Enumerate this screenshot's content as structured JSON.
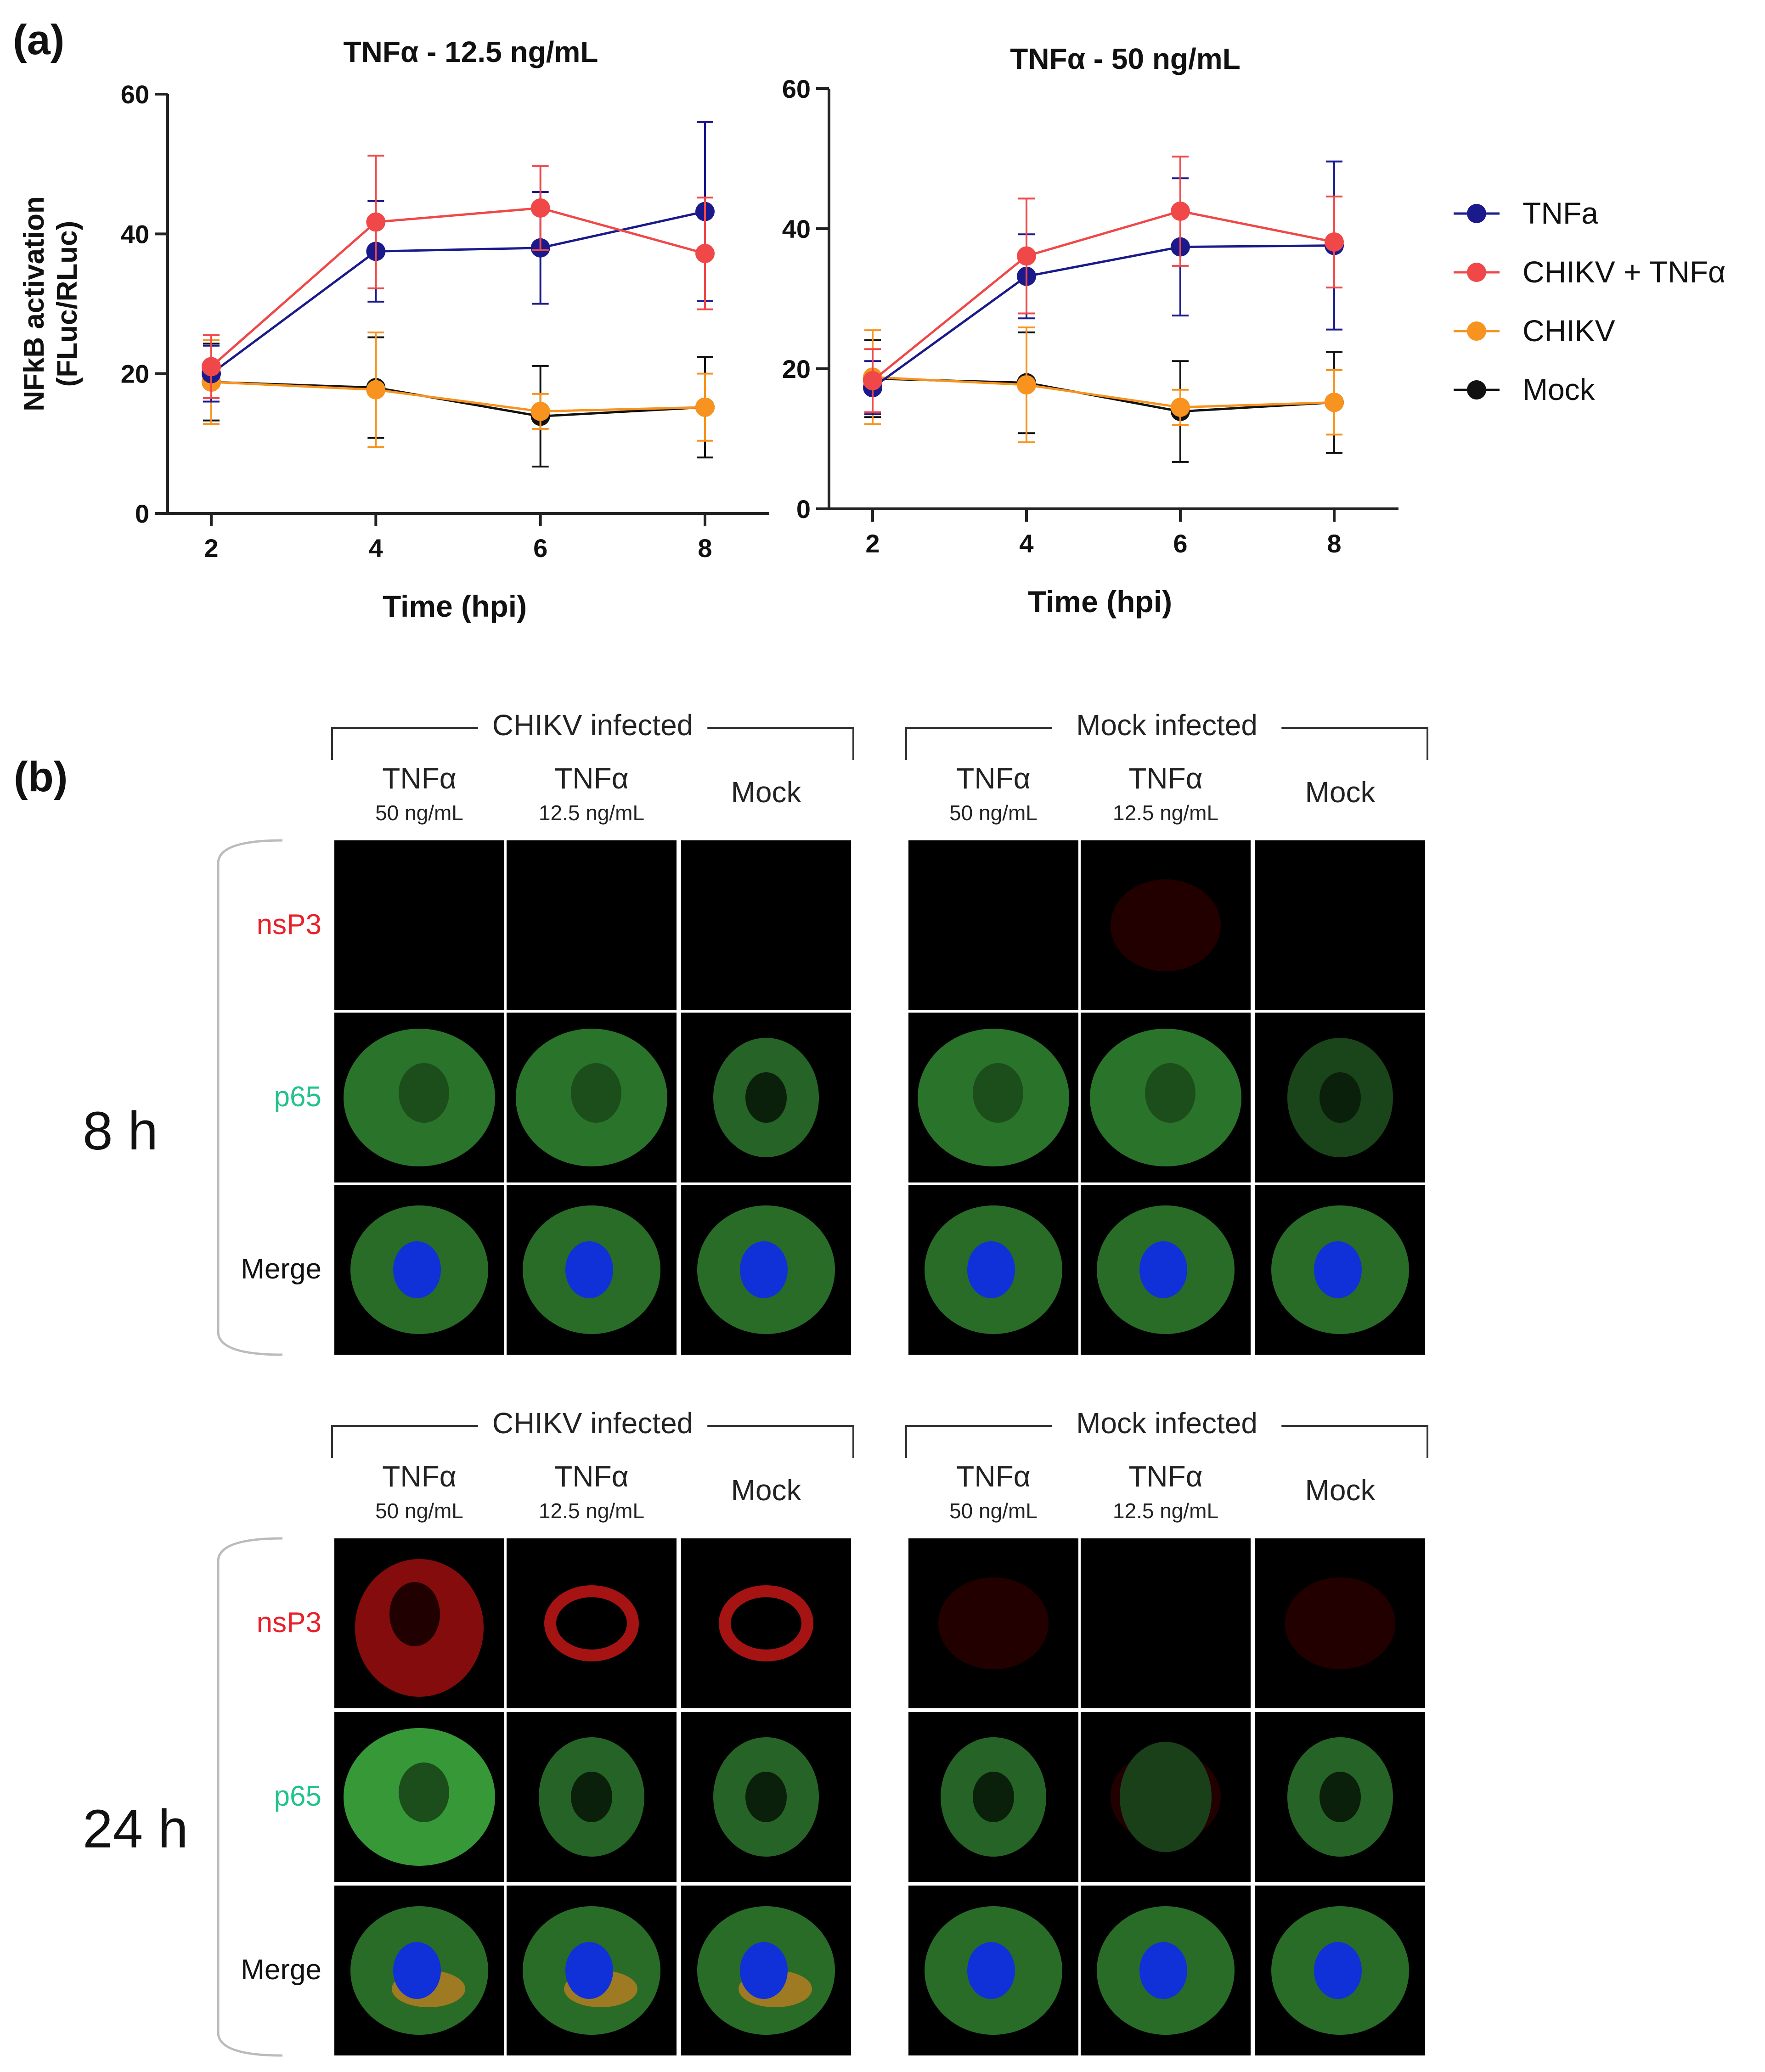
{
  "panel_a_label": "(a)",
  "panel_b_label": "(b)",
  "colors": {
    "tnfa": "#1a1a8c",
    "chikv_tnfa": "#f04848",
    "chikv": "#f7931e",
    "mock": "#111111",
    "nsp3_label": "#e8202a",
    "p65_label": "#22c28c"
  },
  "chart_data": [
    {
      "type": "line",
      "title": "TNFα - 12.5 ng/mL",
      "xlabel": "Time (hpi)",
      "ylabel": "NFkB activation\n(FLuc/RLuc)",
      "x": [
        2,
        4,
        6,
        8
      ],
      "xticks": [
        "2",
        "4",
        "6",
        "8"
      ],
      "yticks": [
        "0",
        "20",
        "40",
        "60"
      ],
      "ylim": [
        0,
        60
      ],
      "series": [
        {
          "name": "TNFa",
          "color": "tnfa",
          "values": [
            20,
            37.5,
            38,
            43.2
          ],
          "errors": [
            4,
            7.2,
            8,
            12.8
          ]
        },
        {
          "name": "CHIKV + TNFα",
          "color": "chikv_tnfa",
          "values": [
            21,
            41.7,
            43.7,
            37.2
          ],
          "errors": [
            4.5,
            9.5,
            6,
            8
          ]
        },
        {
          "name": "CHIKV",
          "color": "chikv",
          "values": [
            18.8,
            17.7,
            14.6,
            15.2
          ],
          "errors": [
            6,
            8.2,
            2.5,
            4.8
          ]
        },
        {
          "name": "Mock",
          "color": "mock",
          "values": [
            18.8,
            18,
            13.9,
            15.2
          ],
          "errors": [
            5.5,
            7.2,
            7.2,
            7.2
          ]
        }
      ]
    },
    {
      "type": "line",
      "title": "TNFα - 50 ng/mL",
      "xlabel": "Time (hpi)",
      "ylabel": "",
      "x": [
        2,
        4,
        6,
        8
      ],
      "xticks": [
        "2",
        "4",
        "6",
        "8"
      ],
      "yticks": [
        "0",
        "20",
        "40",
        "60"
      ],
      "ylim": [
        0,
        60
      ],
      "series": [
        {
          "name": "TNFa",
          "color": "tnfa",
          "values": [
            17.3,
            33.2,
            37.4,
            37.6
          ],
          "errors": [
            3.8,
            6,
            9.8,
            12
          ]
        },
        {
          "name": "CHIKV + TNFα",
          "color": "chikv_tnfa",
          "values": [
            18.3,
            36.1,
            42.5,
            38.1
          ],
          "errors": [
            4.5,
            8.2,
            7.8,
            6.5
          ]
        },
        {
          "name": "CHIKV",
          "color": "chikv",
          "values": [
            18.8,
            17.7,
            14.5,
            15.2
          ],
          "errors": [
            6.7,
            8.2,
            2.5,
            4.6
          ]
        },
        {
          "name": "Mock",
          "color": "mock",
          "values": [
            18.6,
            18,
            13.9,
            15.2
          ],
          "errors": [
            5.5,
            7.2,
            7.2,
            7.2
          ]
        }
      ]
    }
  ],
  "legend": [
    {
      "label": "TNFa",
      "color": "tnfa"
    },
    {
      "label": "CHIKV + TNFα",
      "color": "chikv_tnfa"
    },
    {
      "label": "CHIKV",
      "color": "chikv"
    },
    {
      "label": "Mock",
      "color": "mock"
    }
  ],
  "panel_b": {
    "groups": [
      "CHIKV infected",
      "Mock infected"
    ],
    "treatments": [
      {
        "name": "TNFα",
        "dose": "50 ng/mL"
      },
      {
        "name": "TNFα",
        "dose": "12.5 ng/mL"
      },
      {
        "name": "Mock",
        "dose": ""
      }
    ],
    "timepoints": [
      "8 h",
      "24 h"
    ],
    "channels": [
      {
        "label": "nsP3",
        "color": "nsp3_label"
      },
      {
        "label": "p65",
        "color": "p65_label"
      },
      {
        "label": "Merge",
        "color": "mock"
      }
    ],
    "images": [
      [
        [
          "none",
          "none",
          "none",
          "none",
          "faint",
          "none"
        ],
        [
          "diffuse",
          "diffuse",
          "ring",
          "diffuse",
          "diffuse",
          "ring-faint"
        ],
        [
          "merge",
          "merge",
          "merge",
          "merge",
          "merge",
          "merge"
        ]
      ],
      [
        [
          "strong",
          "medium",
          "medium",
          "faint",
          "none",
          "faint"
        ],
        [
          "diffuse-strong",
          "ring",
          "ring",
          "ring",
          "faint",
          "ring"
        ],
        [
          "merge-red",
          "merge-red",
          "merge-red",
          "merge",
          "merge",
          "merge"
        ]
      ]
    ]
  }
}
